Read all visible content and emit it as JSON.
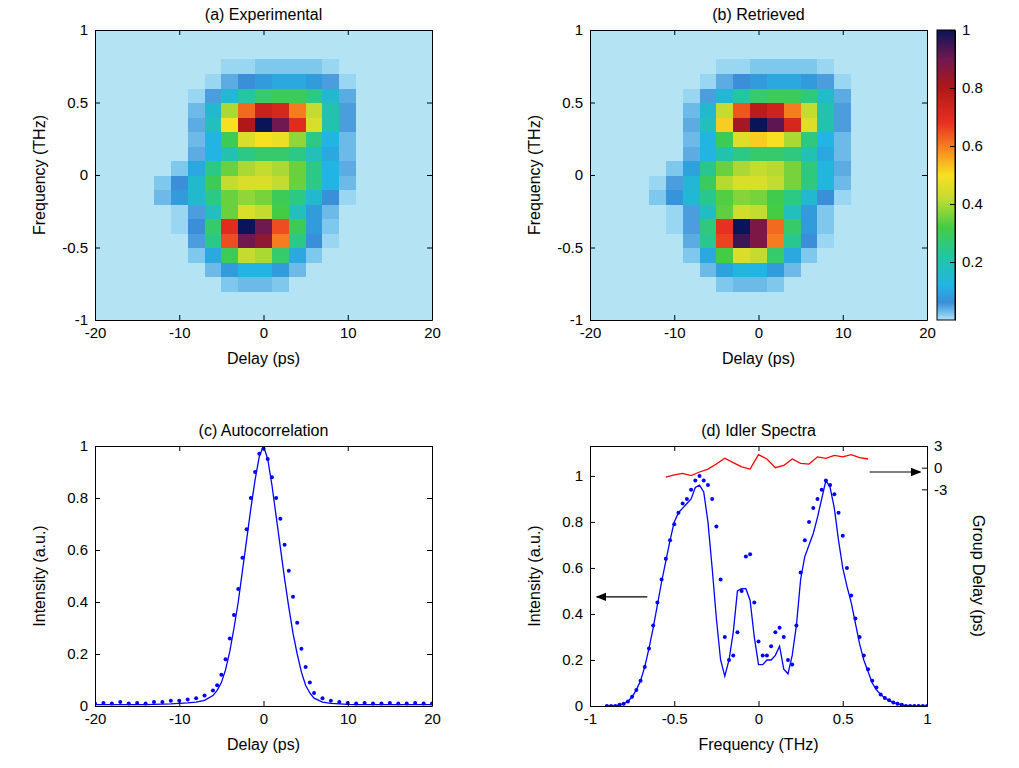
{
  "chart_data": [
    {
      "type": "heatmap",
      "title": "(a) Experimental",
      "x_label": "Delay (ps)",
      "y_label": "Frequency (THz)",
      "xlim": [
        -20,
        20
      ],
      "ylim": [
        -1,
        1
      ],
      "xticks": [
        -20,
        -10,
        0,
        10,
        20
      ],
      "yticks": [
        -1,
        -0.5,
        0,
        0.5,
        1
      ],
      "x": [
        -12,
        -10,
        -8,
        -6,
        -4,
        -2,
        0,
        2,
        4,
        6,
        8,
        10,
        12
      ],
      "y": [
        -0.75,
        -0.65,
        -0.55,
        -0.45,
        -0.35,
        -0.25,
        -0.15,
        -0.05,
        0.05,
        0.15,
        0.25,
        0.35,
        0.45,
        0.55,
        0.65,
        0.75
      ],
      "cells": [
        [
          0,
          0,
          0,
          0,
          0.02,
          0.03,
          0.03,
          0.02,
          0,
          0,
          0,
          0,
          0
        ],
        [
          0,
          0,
          0,
          0.03,
          0.08,
          0.12,
          0.12,
          0.08,
          0.03,
          0,
          0,
          0,
          0
        ],
        [
          0,
          0,
          0.02,
          0.1,
          0.3,
          0.42,
          0.4,
          0.28,
          0.1,
          0.02,
          0,
          0,
          0
        ],
        [
          0,
          0,
          0.05,
          0.25,
          0.65,
          0.9,
          0.85,
          0.6,
          0.25,
          0.06,
          0.01,
          0,
          0
        ],
        [
          0,
          0.01,
          0.06,
          0.28,
          0.7,
          1,
          0.9,
          0.65,
          0.3,
          0.08,
          0.02,
          0,
          0
        ],
        [
          0,
          0.01,
          0.05,
          0.18,
          0.35,
          0.45,
          0.42,
          0.32,
          0.18,
          0.08,
          0.03,
          0,
          0
        ],
        [
          0.03,
          0.08,
          0.15,
          0.25,
          0.35,
          0.38,
          0.36,
          0.3,
          0.25,
          0.15,
          0.06,
          0.01,
          0
        ],
        [
          0.02,
          0.06,
          0.15,
          0.3,
          0.42,
          0.45,
          0.45,
          0.42,
          0.35,
          0.25,
          0.12,
          0.03,
          0
        ],
        [
          0,
          0.02,
          0.1,
          0.25,
          0.35,
          0.4,
          0.42,
          0.4,
          0.35,
          0.25,
          0.12,
          0.04,
          0
        ],
        [
          0,
          0,
          0.04,
          0.12,
          0.2,
          0.25,
          0.28,
          0.28,
          0.25,
          0.18,
          0.1,
          0.03,
          0
        ],
        [
          0,
          0,
          0.03,
          0.12,
          0.3,
          0.45,
          0.5,
          0.48,
          0.38,
          0.25,
          0.12,
          0.03,
          0
        ],
        [
          0,
          0,
          0.04,
          0.18,
          0.5,
          0.8,
          1,
          0.9,
          0.7,
          0.45,
          0.2,
          0.05,
          0
        ],
        [
          0,
          0,
          0.03,
          0.15,
          0.4,
          0.62,
          0.75,
          0.72,
          0.6,
          0.42,
          0.2,
          0.05,
          0
        ],
        [
          0,
          0,
          0.01,
          0.05,
          0.14,
          0.22,
          0.28,
          0.3,
          0.3,
          0.25,
          0.15,
          0.04,
          0
        ],
        [
          0,
          0,
          0,
          0.01,
          0.04,
          0.06,
          0.08,
          0.1,
          0.1,
          0.08,
          0.05,
          0.01,
          0
        ],
        [
          0,
          0,
          0,
          0,
          0.01,
          0.01,
          0.02,
          0.02,
          0.02,
          0.02,
          0.01,
          0,
          0
        ]
      ]
    },
    {
      "type": "heatmap",
      "title": "(b) Retrieved",
      "x_label": "Delay (ps)",
      "y_label": "Frequency (THz)",
      "xlim": [
        -20,
        20
      ],
      "ylim": [
        -1,
        1
      ],
      "xticks": [
        -20,
        -10,
        0,
        10,
        20
      ],
      "yticks": [
        -1,
        -0.5,
        0,
        0.5,
        1
      ],
      "x": [
        -12,
        -10,
        -8,
        -6,
        -4,
        -2,
        0,
        2,
        4,
        6,
        8,
        10,
        12
      ],
      "y": [
        -0.75,
        -0.65,
        -0.55,
        -0.45,
        -0.35,
        -0.25,
        -0.15,
        -0.05,
        0.05,
        0.15,
        0.25,
        0.35,
        0.45,
        0.55,
        0.65,
        0.75
      ],
      "cells": [
        [
          0,
          0,
          0,
          0,
          0.02,
          0.03,
          0.03,
          0.02,
          0,
          0,
          0,
          0,
          0
        ],
        [
          0,
          0,
          0,
          0.03,
          0.09,
          0.13,
          0.12,
          0.08,
          0.03,
          0,
          0,
          0,
          0
        ],
        [
          0,
          0,
          0.02,
          0.1,
          0.32,
          0.45,
          0.42,
          0.28,
          0.1,
          0.02,
          0,
          0,
          0
        ],
        [
          0,
          0,
          0.04,
          0.24,
          0.66,
          0.95,
          0.88,
          0.6,
          0.24,
          0.06,
          0.01,
          0,
          0
        ],
        [
          0,
          0.01,
          0.05,
          0.26,
          0.68,
          1,
          0.88,
          0.62,
          0.28,
          0.08,
          0.02,
          0,
          0
        ],
        [
          0,
          0.01,
          0.05,
          0.17,
          0.34,
          0.44,
          0.42,
          0.32,
          0.18,
          0.08,
          0.02,
          0,
          0
        ],
        [
          0.02,
          0.07,
          0.14,
          0.24,
          0.33,
          0.37,
          0.36,
          0.31,
          0.25,
          0.15,
          0.06,
          0.01,
          0
        ],
        [
          0.01,
          0.05,
          0.14,
          0.29,
          0.41,
          0.45,
          0.45,
          0.42,
          0.36,
          0.26,
          0.13,
          0.03,
          0
        ],
        [
          0,
          0.02,
          0.09,
          0.24,
          0.35,
          0.4,
          0.42,
          0.41,
          0.36,
          0.26,
          0.13,
          0.04,
          0
        ],
        [
          0,
          0,
          0.04,
          0.12,
          0.2,
          0.25,
          0.28,
          0.28,
          0.26,
          0.19,
          0.1,
          0.03,
          0
        ],
        [
          0,
          0,
          0.03,
          0.12,
          0.3,
          0.46,
          0.52,
          0.5,
          0.4,
          0.26,
          0.12,
          0.03,
          0
        ],
        [
          0,
          0,
          0.04,
          0.18,
          0.52,
          0.82,
          1,
          0.92,
          0.72,
          0.46,
          0.2,
          0.05,
          0
        ],
        [
          0,
          0,
          0.03,
          0.15,
          0.42,
          0.64,
          0.78,
          0.74,
          0.6,
          0.42,
          0.2,
          0.05,
          0
        ],
        [
          0,
          0,
          0.01,
          0.05,
          0.14,
          0.22,
          0.28,
          0.3,
          0.3,
          0.26,
          0.16,
          0.04,
          0
        ],
        [
          0,
          0,
          0,
          0.01,
          0.04,
          0.06,
          0.08,
          0.1,
          0.1,
          0.08,
          0.05,
          0.01,
          0
        ],
        [
          0,
          0,
          0,
          0,
          0.01,
          0.01,
          0.02,
          0.02,
          0.02,
          0.02,
          0.01,
          0,
          0
        ]
      ],
      "colorbar": {
        "range": [
          0,
          1
        ],
        "ticks": [
          0.2,
          0.4,
          0.6,
          0.8,
          1
        ]
      }
    },
    {
      "type": "line",
      "title": "(c) Autocorrelation",
      "x_label": "Delay (ps)",
      "y_label": "Intensity (a.u.)",
      "xlim": [
        -20,
        20
      ],
      "ylim": [
        0,
        1
      ],
      "xticks": [
        -20,
        -10,
        0,
        10,
        20
      ],
      "yticks": [
        0,
        0.2,
        0.4,
        0.6,
        0.8,
        1
      ],
      "series": [
        {
          "type": "scatter",
          "marker": "dot",
          "color": "#0000ff",
          "x": [
            -20,
            -19,
            -18,
            -17,
            -16,
            -15,
            -14,
            -13,
            -12,
            -11,
            -10,
            -9,
            -8,
            -7,
            -6,
            -5.5,
            -5,
            -4.5,
            -4,
            -3.5,
            -3,
            -2.5,
            -2,
            -1.5,
            -1,
            -0.5,
            0,
            0.5,
            1,
            1.5,
            2,
            2.5,
            3,
            3.5,
            4,
            4.5,
            5,
            5.5,
            6,
            7,
            8,
            9,
            10,
            11,
            12,
            13,
            14,
            15,
            16,
            17,
            18,
            19,
            20
          ],
          "values": [
            0.01,
            0.012,
            0.01,
            0.015,
            0.01,
            0.012,
            0.01,
            0.015,
            0.015,
            0.02,
            0.02,
            0.025,
            0.03,
            0.04,
            0.06,
            0.08,
            0.12,
            0.18,
            0.26,
            0.35,
            0.45,
            0.57,
            0.68,
            0.8,
            0.9,
            0.97,
            0.99,
            0.95,
            0.88,
            0.8,
            0.72,
            0.62,
            0.52,
            0.42,
            0.32,
            0.22,
            0.15,
            0.09,
            0.05,
            0.03,
            0.02,
            0.015,
            0.012,
            0.01,
            0.012,
            0.01,
            0.01,
            0.012,
            0.01,
            0.01,
            0.012,
            0.01,
            0.01
          ]
        },
        {
          "type": "line",
          "line_style": "solid",
          "color": "#0000ff",
          "x": [
            -20,
            -19,
            -18,
            -17,
            -16,
            -15,
            -14,
            -13,
            -12,
            -11,
            -10,
            -9,
            -8,
            -7,
            -6,
            -5.5,
            -5,
            -4.5,
            -4,
            -3.5,
            -3,
            -2.5,
            -2,
            -1.5,
            -1,
            -0.5,
            0,
            0.5,
            1,
            1.5,
            2,
            2.5,
            3,
            3.5,
            4,
            4.5,
            5,
            5.5,
            6,
            7,
            8,
            9,
            10,
            11,
            12,
            13,
            14,
            15,
            16,
            17,
            18,
            19,
            20
          ],
          "values": [
            0.005,
            0.005,
            0.005,
            0.005,
            0.005,
            0.005,
            0.005,
            0.006,
            0.007,
            0.008,
            0.01,
            0.012,
            0.015,
            0.022,
            0.04,
            0.06,
            0.09,
            0.14,
            0.21,
            0.3,
            0.4,
            0.52,
            0.64,
            0.76,
            0.87,
            0.96,
            1,
            0.95,
            0.85,
            0.73,
            0.61,
            0.49,
            0.38,
            0.28,
            0.2,
            0.13,
            0.08,
            0.05,
            0.03,
            0.015,
            0.01,
            0.008,
            0.006,
            0.005,
            0.005,
            0.005,
            0.005,
            0.005,
            0.005,
            0.005,
            0.005,
            0.005,
            0.005
          ]
        }
      ]
    },
    {
      "type": "line",
      "title": "(d) Idler Spectra",
      "x_label": "Frequency (THz)",
      "y_label": "Intensity (a.u.)",
      "y2_label": "Group Delay (ps)",
      "xlim": [
        -1,
        1
      ],
      "ylim": [
        0,
        1.13
      ],
      "y2lim": [
        -33,
        3
      ],
      "xticks": [
        -1,
        -0.5,
        0,
        0.5,
        1
      ],
      "yticks": [
        0,
        0.2,
        0.4,
        0.6,
        0.8,
        1
      ],
      "y2ticks": [
        -3,
        0,
        3
      ],
      "x": [
        -0.9,
        -0.875,
        -0.85,
        -0.825,
        -0.8,
        -0.775,
        -0.75,
        -0.725,
        -0.7,
        -0.675,
        -0.65,
        -0.625,
        -0.6,
        -0.575,
        -0.55,
        -0.525,
        -0.5,
        -0.475,
        -0.45,
        -0.425,
        -0.4,
        -0.375,
        -0.35,
        -0.325,
        -0.3,
        -0.275,
        -0.25,
        -0.225,
        -0.2,
        -0.175,
        -0.15,
        -0.125,
        -0.1,
        -0.075,
        -0.05,
        -0.025,
        0,
        0.025,
        0.05,
        0.075,
        0.1,
        0.125,
        0.15,
        0.175,
        0.2,
        0.225,
        0.25,
        0.275,
        0.3,
        0.325,
        0.35,
        0.375,
        0.4,
        0.425,
        0.45,
        0.475,
        0.5,
        0.525,
        0.55,
        0.575,
        0.6,
        0.625,
        0.65,
        0.675,
        0.7,
        0.725,
        0.75,
        0.775,
        0.8,
        0.825,
        0.85,
        0.875,
        0.9,
        0.925,
        0.95,
        0.975,
        1
      ],
      "series": [
        {
          "type": "scatter",
          "marker": "dot",
          "color": "#0000ff",
          "values": [
            0,
            0,
            0,
            0.005,
            0.01,
            0.02,
            0.04,
            0.07,
            0.11,
            0.17,
            0.25,
            0.35,
            0.45,
            0.55,
            0.64,
            0.72,
            0.79,
            0.84,
            0.88,
            0.9,
            0.94,
            0.98,
            1,
            0.98,
            0.96,
            0.9,
            0.78,
            0.55,
            0.3,
            0.2,
            0.22,
            0.32,
            0.5,
            0.65,
            0.66,
            0.45,
            0.28,
            0.22,
            0.22,
            0.26,
            0.32,
            0.34,
            0.3,
            0.2,
            0.18,
            0.35,
            0.58,
            0.72,
            0.8,
            0.86,
            0.9,
            0.94,
            0.98,
            0.96,
            0.92,
            0.84,
            0.74,
            0.6,
            0.48,
            0.38,
            0.3,
            0.22,
            0.16,
            0.11,
            0.08,
            0.05,
            0.035,
            0.025,
            0.015,
            0.01,
            0.005,
            0,
            0,
            0,
            0,
            0,
            0
          ]
        },
        {
          "type": "line",
          "line_style": "solid",
          "color": "#0000ff",
          "values": [
            0,
            0,
            0,
            0.005,
            0.01,
            0.02,
            0.04,
            0.07,
            0.11,
            0.17,
            0.25,
            0.34,
            0.44,
            0.54,
            0.63,
            0.72,
            0.8,
            0.84,
            0.86,
            0.88,
            0.9,
            0.95,
            0.96,
            0.93,
            0.8,
            0.6,
            0.38,
            0.2,
            0.13,
            0.2,
            0.32,
            0.5,
            0.51,
            0.51,
            0.46,
            0.3,
            0.18,
            0.18,
            0.2,
            0.2,
            0.22,
            0.26,
            0.16,
            0.14,
            0.22,
            0.35,
            0.55,
            0.65,
            0.7,
            0.75,
            0.82,
            0.9,
            0.98,
            0.95,
            0.86,
            0.72,
            0.6,
            0.52,
            0.45,
            0.36,
            0.27,
            0.2,
            0.15,
            0.1,
            0.07,
            0.05,
            0.035,
            0.025,
            0.015,
            0.01,
            0.005,
            0,
            0,
            0,
            0,
            0,
            0
          ]
        },
        {
          "type": "line",
          "axis": "y2",
          "line_style": "solid",
          "color": "#ff0000",
          "x": [
            -0.55,
            -0.5,
            -0.45,
            -0.4,
            -0.35,
            -0.3,
            -0.25,
            -0.2,
            -0.15,
            -0.1,
            -0.05,
            0,
            0.05,
            0.1,
            0.15,
            0.2,
            0.25,
            0.3,
            0.35,
            0.4,
            0.45,
            0.5,
            0.55,
            0.6,
            0.65
          ],
          "values": [
            -1.3,
            -1,
            -0.8,
            -1.1,
            -0.6,
            -0.2,
            0.5,
            1.3,
            0.7,
            0.1,
            -0.2,
            1.8,
            1.2,
            0,
            0.3,
            1.2,
            0.6,
            0.5,
            1.5,
            1.3,
            1.7,
            1.5,
            1.8,
            1.4,
            1.2
          ]
        }
      ]
    }
  ]
}
